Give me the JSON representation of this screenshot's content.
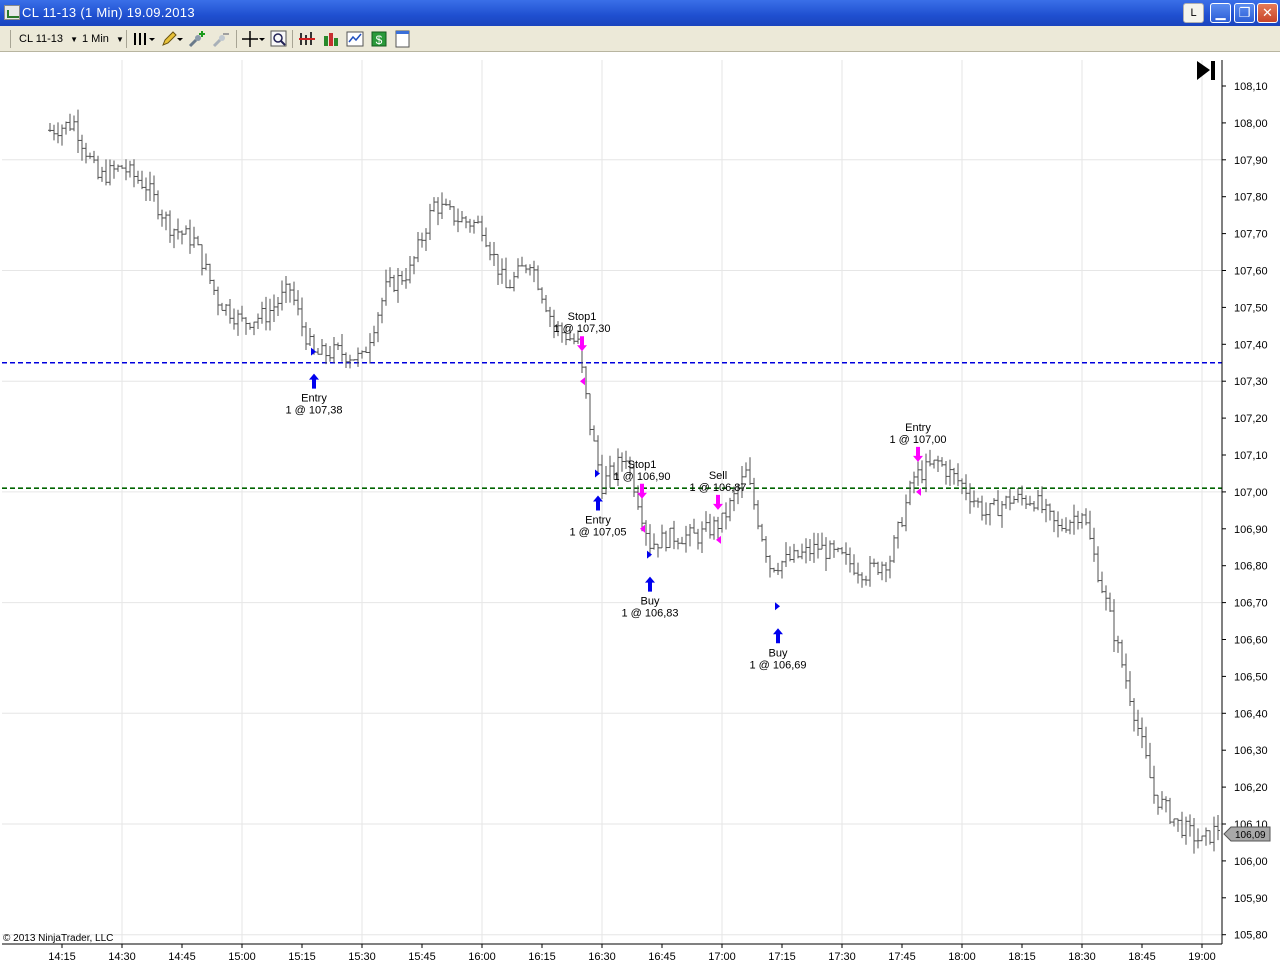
{
  "window": {
    "title": "CL 11-13 (1 Min)  19.09.2013",
    "buttons": {
      "layout": "L",
      "minimize": "▁",
      "restore": "❐",
      "close": "✕"
    }
  },
  "toolbar": {
    "instrument": "CL 11-13",
    "interval": "1 Min",
    "icons": [
      "bar-style-icon",
      "drawing-pencil-icon",
      "add-indicator-icon",
      "remove-indicator-icon",
      "crosshair-icon",
      "zoom-icon",
      "strategy-icon",
      "bar-chart-icon",
      "data-box-icon",
      "money-icon",
      "properties-icon"
    ]
  },
  "chart": {
    "copyright": "© 2013 NinjaTrader, LLC",
    "last_price": "106,09",
    "scroll_end_icon": "jump-to-end-icon",
    "colors": {
      "bars": "#000000",
      "grid": "#e6e6e6",
      "blue_line": "#0000dd",
      "green_line": "#006400",
      "buy": "#0000ee",
      "sell": "#ff00ff"
    }
  },
  "chart_data": {
    "type": "bar",
    "title": "",
    "xlabel": "",
    "ylabel": "",
    "ylim": [
      105.8,
      108.15
    ],
    "x_ticks": [
      "14:15",
      "14:30",
      "14:45",
      "15:00",
      "15:15",
      "15:30",
      "15:45",
      "16:00",
      "16:15",
      "16:30",
      "16:45",
      "17:00",
      "17:15",
      "17:30",
      "17:45",
      "18:00",
      "18:15",
      "18:30",
      "18:45",
      "19:00"
    ],
    "y_ticks": [
      "108,10",
      "108,00",
      "107,90",
      "107,80",
      "107,70",
      "107,60",
      "107,50",
      "107,40",
      "107,30",
      "107,20",
      "107,10",
      "107,00",
      "106,90",
      "106,80",
      "106,70",
      "106,60",
      "106,50",
      "106,40",
      "106,30",
      "106,20",
      "106,10",
      "106,00",
      "105,90",
      "105,80"
    ],
    "horizontal_lines": [
      {
        "value": 107.35,
        "color": "#0000dd",
        "style": "dashed"
      },
      {
        "value": 107.01,
        "color": "#006400",
        "style": "dashed"
      }
    ],
    "anchor_points": [
      [
        "14:12",
        107.98
      ],
      [
        "14:18",
        108.0
      ],
      [
        "14:24",
        107.85
      ],
      [
        "14:30",
        107.88
      ],
      [
        "14:36",
        107.83
      ],
      [
        "14:42",
        107.72
      ],
      [
        "14:48",
        107.68
      ],
      [
        "14:54",
        107.52
      ],
      [
        "15:00",
        107.46
      ],
      [
        "15:06",
        107.48
      ],
      [
        "15:12",
        107.55
      ],
      [
        "15:15",
        107.45
      ],
      [
        "15:18",
        107.37
      ],
      [
        "15:24",
        107.38
      ],
      [
        "15:30",
        107.36
      ],
      [
        "15:36",
        107.55
      ],
      [
        "15:42",
        107.6
      ],
      [
        "15:48",
        107.78
      ],
      [
        "15:54",
        107.74
      ],
      [
        "16:00",
        107.72
      ],
      [
        "16:06",
        107.55
      ],
      [
        "16:12",
        107.63
      ],
      [
        "16:18",
        107.45
      ],
      [
        "16:24",
        107.4
      ],
      [
        "16:27",
        107.18
      ],
      [
        "16:30",
        107.02
      ],
      [
        "16:36",
        107.1
      ],
      [
        "16:42",
        106.86
      ],
      [
        "16:48",
        106.88
      ],
      [
        "16:54",
        106.88
      ],
      [
        "17:00",
        106.92
      ],
      [
        "17:06",
        107.05
      ],
      [
        "17:12",
        106.8
      ],
      [
        "17:18",
        106.82
      ],
      [
        "17:24",
        106.85
      ],
      [
        "17:30",
        106.82
      ],
      [
        "17:36",
        106.78
      ],
      [
        "17:42",
        106.82
      ],
      [
        "17:48",
        107.04
      ],
      [
        "17:54",
        107.08
      ],
      [
        "18:00",
        107.02
      ],
      [
        "18:06",
        106.94
      ],
      [
        "18:12",
        106.98
      ],
      [
        "18:18",
        106.98
      ],
      [
        "18:24",
        106.9
      ],
      [
        "18:30",
        106.95
      ],
      [
        "18:36",
        106.7
      ],
      [
        "18:42",
        106.45
      ],
      [
        "18:48",
        106.18
      ],
      [
        "18:54",
        106.1
      ],
      [
        "19:00",
        106.05
      ],
      [
        "19:04",
        106.09
      ]
    ],
    "orders": [
      {
        "time": "15:18",
        "price": 107.38,
        "side": "buy",
        "line1": "Entry",
        "line2": "1 @ 107,38"
      },
      {
        "time": "16:25",
        "price": 107.3,
        "side": "sell",
        "line1": "Stop1",
        "line2": "1 @ 107,30"
      },
      {
        "time": "16:29",
        "price": 107.05,
        "side": "buy",
        "line1": "Entry",
        "line2": "1 @ 107,05"
      },
      {
        "time": "16:40",
        "price": 106.9,
        "side": "sell",
        "line1": "Stop1",
        "line2": "1 @ 106,90"
      },
      {
        "time": "16:42",
        "price": 106.83,
        "side": "buy",
        "line1": "Buy",
        "line2": "1 @ 106,83"
      },
      {
        "time": "16:59",
        "price": 106.87,
        "side": "sell",
        "line1": "Sell",
        "line2": "1 @ 106,87"
      },
      {
        "time": "17:14",
        "price": 106.69,
        "side": "buy",
        "line1": "Buy",
        "line2": "1 @ 106,69"
      },
      {
        "time": "17:49",
        "price": 107.0,
        "side": "sell",
        "line1": "Entry",
        "line2": "1 @ 107,00"
      }
    ]
  }
}
